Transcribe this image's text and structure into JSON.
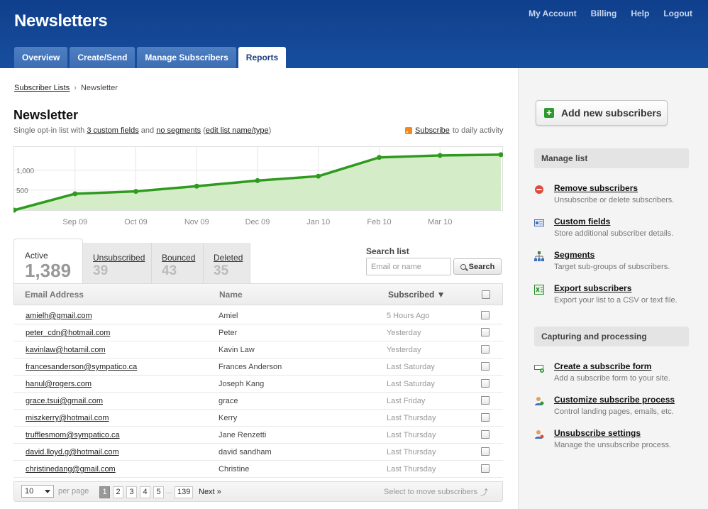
{
  "header": {
    "title": "Newsletters",
    "top_links": [
      "My Account",
      "Billing",
      "Help",
      "Logout"
    ],
    "tabs": [
      "Overview",
      "Create/Send",
      "Manage Subscribers",
      "Reports"
    ],
    "active_tab": "Reports"
  },
  "breadcrumb": {
    "parent": "Subscriber Lists",
    "separator": "›",
    "current": "Newsletter"
  },
  "page": {
    "title": "Newsletter",
    "sub_prefix": "Single opt-in list with",
    "custom_fields": "3 custom fields",
    "and": "and",
    "segments": "no segments",
    "paren_open": "(",
    "edit_link": "edit list name/type",
    "paren_close": ")",
    "rss_link": "Subscribe",
    "rss_suffix": "to daily activity"
  },
  "chart_data": {
    "type": "area",
    "x": [
      "Aug 09",
      "Sep 09",
      "Oct 09",
      "Nov 09",
      "Dec 09",
      "Jan 10",
      "Feb 10",
      "Mar 10",
      "Apr 10"
    ],
    "y": [
      0,
      410,
      470,
      600,
      740,
      850,
      1320,
      1370,
      1389
    ],
    "tick_labels": [
      "Sep 09",
      "Oct 09",
      "Nov 09",
      "Dec 09",
      "Jan 10",
      "Feb 10",
      "Mar 10"
    ],
    "yticks": [
      "1,000",
      "500"
    ],
    "ytick_values": [
      1000,
      500
    ],
    "ylim": [
      0,
      1600
    ],
    "line_color": "#2e9a1e",
    "fill_color": "#d4edc8",
    "grid": true
  },
  "stats": {
    "active_label": "Active",
    "active_count": "1,389",
    "others": [
      {
        "label": "Unsubscribed",
        "count": "39"
      },
      {
        "label": "Bounced",
        "count": "43"
      },
      {
        "label": "Deleted",
        "count": "35"
      }
    ]
  },
  "search": {
    "label": "Search list",
    "placeholder": "Email or name",
    "button": "Search"
  },
  "table": {
    "headers": {
      "email": "Email Address",
      "name": "Name",
      "subscribed": "Subscribed ▼"
    },
    "rows": [
      {
        "email": "amielh@gmail.com",
        "name": "Amiel",
        "when": "5 Hours Ago"
      },
      {
        "email": "peter_cdn@hotmail.com",
        "name": "Peter",
        "when": "Yesterday"
      },
      {
        "email": "kavinlaw@hotamil.com",
        "name": "Kavin Law",
        "when": "Yesterday"
      },
      {
        "email": "francesanderson@sympatico.ca",
        "name": "Frances Anderson",
        "when": "Last Saturday"
      },
      {
        "email": "hanul@rogers.com",
        "name": "Joseph Kang",
        "when": "Last Saturday"
      },
      {
        "email": "grace.tsui@gmail.com",
        "name": "grace",
        "when": "Last Friday"
      },
      {
        "email": "miszkerry@hotmail.com",
        "name": "Kerry",
        "when": "Last Thursday"
      },
      {
        "email": "trufflesmom@sympatico.ca",
        "name": "Jane Renzetti",
        "when": "Last Thursday"
      },
      {
        "email": "david.lloyd.g@hotmail.com",
        "name": "david sandham",
        "when": "Last Thursday"
      },
      {
        "email": "christinedang@gmail.com",
        "name": "Christine",
        "when": "Last Thursday"
      }
    ]
  },
  "pager": {
    "per_page_value": "10",
    "per_page_label": "per page",
    "pages": [
      "1",
      "2",
      "3",
      "4",
      "5"
    ],
    "current_page": "1",
    "ellipsis": "...",
    "last_page": "139",
    "next": "Next »",
    "move_hint": "Select to move subscribers",
    "move_arrow": "⤴"
  },
  "sidebar": {
    "add_button": "Add new subscribers",
    "manage_heading": "Manage list",
    "manage_items": [
      {
        "title": "Remove subscribers",
        "desc": "Unsubscribe or delete subscribers.",
        "icon": "remove-icon"
      },
      {
        "title": "Custom fields",
        "desc": "Store additional subscriber details.",
        "icon": "card-icon"
      },
      {
        "title": "Segments",
        "desc": "Target sub-groups of subscribers.",
        "icon": "hierarchy-icon"
      },
      {
        "title": "Export subscribers",
        "desc": "Export your list to a CSV or text file.",
        "icon": "spreadsheet-icon"
      }
    ],
    "capture_heading": "Capturing and processing",
    "capture_items": [
      {
        "title": "Create a subscribe form",
        "desc": "Add a subscribe form to your site.",
        "icon": "form-icon"
      },
      {
        "title": "Customize subscribe process",
        "desc": "Control landing pages, emails, etc.",
        "icon": "user-gear-icon"
      },
      {
        "title": "Unsubscribe settings",
        "desc": "Manage the unsubscribe process.",
        "icon": "user-remove-icon"
      }
    ]
  }
}
